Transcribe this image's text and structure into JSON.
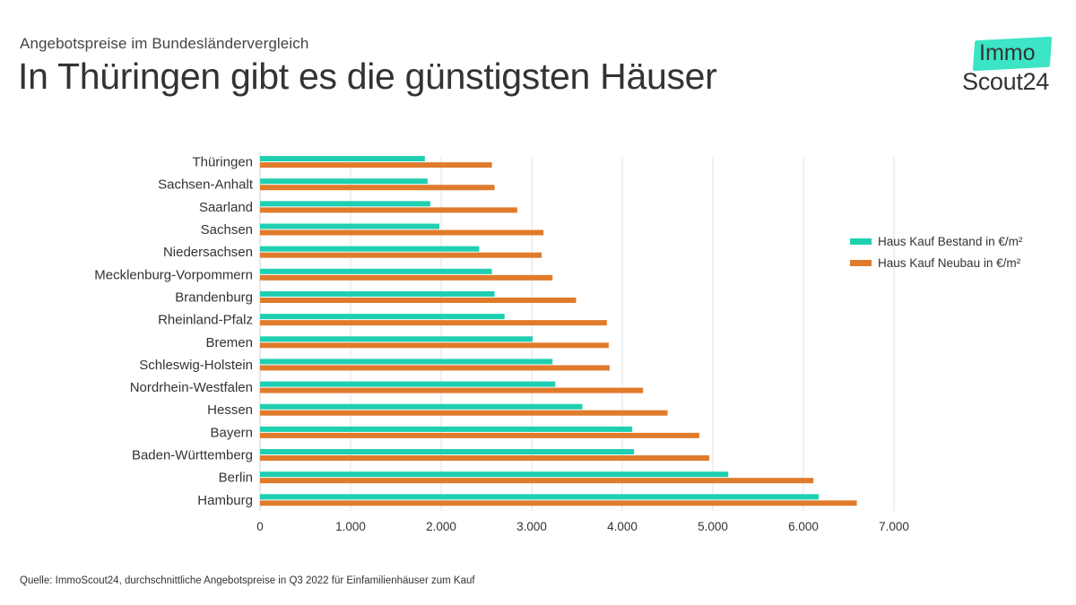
{
  "header": {
    "subtitle": "Angebotspreise im Bundesländervergleich",
    "title": "In Thüringen gibt es die günstigsten Häuser"
  },
  "logo": {
    "top_text": "Immo",
    "bottom_text": "Scout24",
    "badge_color": "#3ce5c5"
  },
  "chart_data": {
    "type": "bar",
    "orientation": "horizontal",
    "categories": [
      "Thüringen",
      "Sachsen-Anhalt",
      "Saarland",
      "Sachsen",
      "Niedersachsen",
      "Mecklenburg-Vorpommern",
      "Brandenburg",
      "Rheinland-Pfalz",
      "Bremen",
      "Schleswig-Holstein",
      "Nordrhein-Westfalen",
      "Hessen",
      "Bayern",
      "Baden-Württemberg",
      "Berlin",
      "Hamburg"
    ],
    "series": [
      {
        "name": "Haus Kauf Bestand in €/m²",
        "color": "#1fcfb1",
        "values": [
          1820,
          1850,
          1880,
          1980,
          2420,
          2560,
          2590,
          2700,
          3010,
          3230,
          3260,
          3560,
          4110,
          4130,
          5170,
          6170
        ]
      },
      {
        "name": "Haus Kauf Neubau in €/m²",
        "color": "#e07b2c",
        "values": [
          2560,
          2590,
          2840,
          3130,
          3110,
          3230,
          3490,
          3830,
          3850,
          3860,
          4230,
          4500,
          4850,
          4960,
          6110,
          6590
        ]
      }
    ],
    "xlim": [
      0,
      7000
    ],
    "xticks": [
      0,
      1000,
      2000,
      3000,
      4000,
      5000,
      6000,
      7000
    ],
    "xtick_labels": [
      "0",
      "1.000",
      "2.000",
      "3.000",
      "4.000",
      "5.000",
      "6.000",
      "7.000"
    ],
    "grid": "vertical",
    "legend_position": "right",
    "title": "",
    "xlabel": "",
    "ylabel": ""
  },
  "footer": {
    "source": "Quelle: ImmoScout24, durchschnittliche Angebotspreise in Q3 2022 für Einfamilienhäuser zum Kauf"
  }
}
